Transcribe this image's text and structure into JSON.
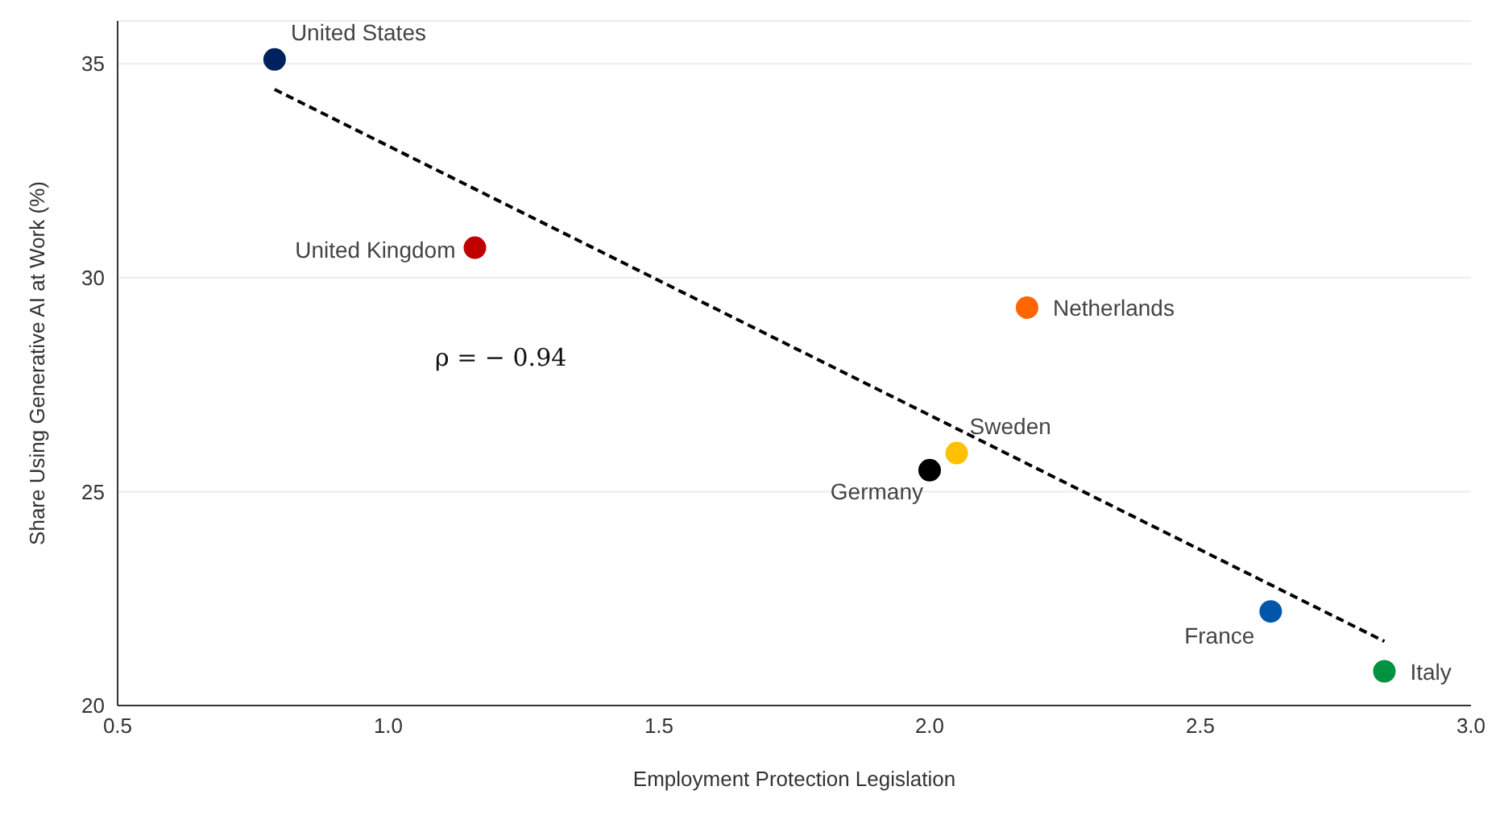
{
  "chart_data": {
    "type": "scatter",
    "xlabel": "Employment Protection Legislation",
    "ylabel": "Share Using Generative AI at Work (%)",
    "xlim": [
      0.5,
      3.0
    ],
    "xticks": [
      0.5,
      {
        "value": 1,
        "label": "1.0"
      },
      1.5,
      {
        "value": 2,
        "label": "2.0"
      },
      2.5,
      {
        "value": 3,
        "label": "3.0"
      }
    ],
    "ylim": [
      20,
      36
    ],
    "yticks": [
      20,
      25,
      30,
      35
    ],
    "grid": "y",
    "legend": false,
    "marker": "circle",
    "annotations": [
      "ρ = − 0.94"
    ],
    "series": [
      {
        "name": "United States",
        "color": "#002060",
        "x": [
          0.79
        ],
        "values": [
          35.1
        ]
      },
      {
        "name": "United Kingdom",
        "color": "#c00000",
        "x": [
          1.16
        ],
        "values": [
          30.7
        ]
      },
      {
        "name": "Netherlands",
        "color": "#ff6600",
        "x": [
          2.18
        ],
        "values": [
          29.3
        ]
      },
      {
        "name": "Sweden",
        "color": "#ffc000",
        "x": [
          2.05
        ],
        "values": [
          25.9
        ]
      },
      {
        "name": "Germany",
        "color": "#000000",
        "x": [
          2.0
        ],
        "values": [
          25.5
        ]
      },
      {
        "name": "France",
        "color": "#0056a8",
        "x": [
          2.63
        ],
        "values": [
          22.2
        ]
      },
      {
        "name": "Italy",
        "color": "#00923f",
        "x": [
          2.84
        ],
        "values": [
          20.8
        ]
      },
      {
        "type": "line",
        "color": "#000000",
        "line_style": "dashed",
        "marker": "none",
        "x": [
          0.79,
          2.84
        ],
        "values": [
          34.4,
          21.5
        ]
      }
    ]
  }
}
